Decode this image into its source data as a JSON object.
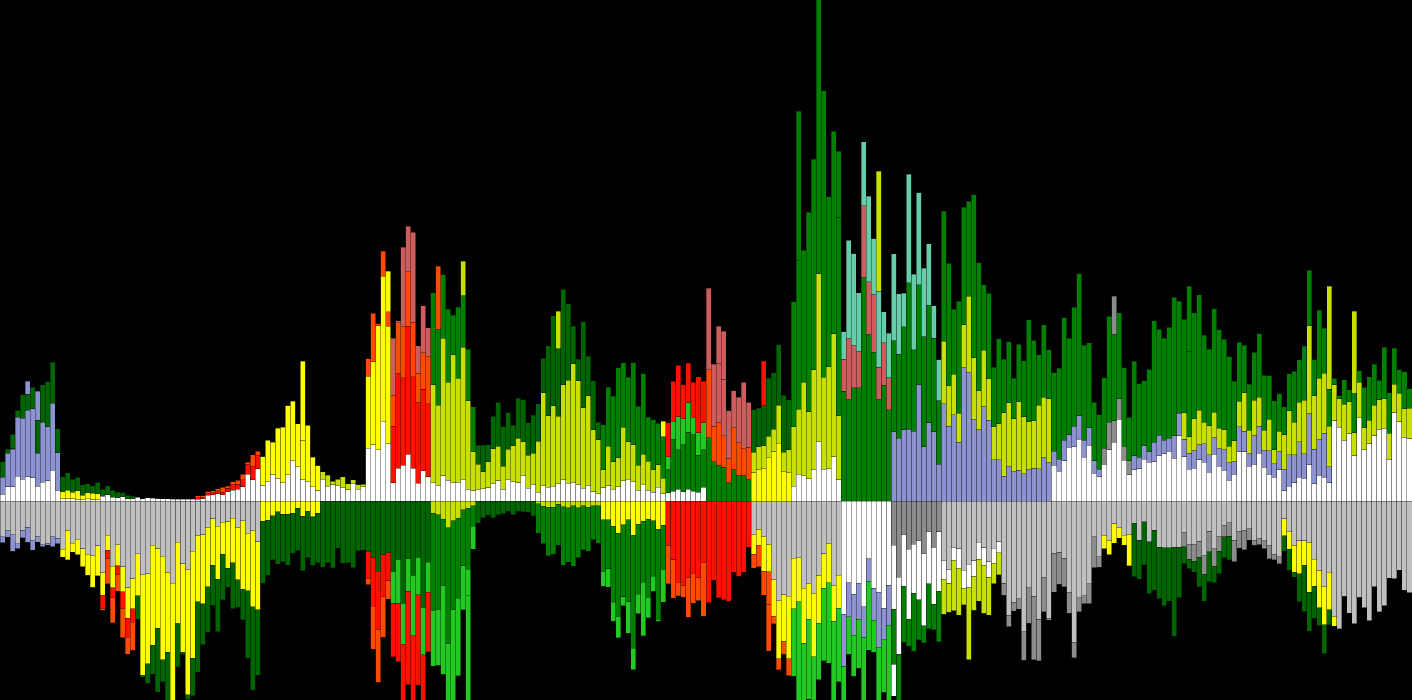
{
  "chart_data": {
    "type": "bar",
    "subtype": "diverging-stacked",
    "title": "",
    "xlabel": "",
    "ylabel": "",
    "legend": "none",
    "grid": false,
    "background": "#000000",
    "ylim": [
      -200,
      420
    ],
    "column_count": 282,
    "palette": {
      "white": "#ffffff",
      "silver": "#c0c0c0",
      "gray": "#8c8c8c",
      "lavender": "#8d93d0",
      "yellow": "#ffff00",
      "lime_yellow": "#c8e000",
      "dark_green": "#006400",
      "green": "#008000",
      "bright_green": "#22c922",
      "red": "#ff1000",
      "orange_red": "#ff4a00",
      "salmon": "#cd5c5c",
      "aquamarine": "#66cdaa",
      "khaki": "#bdb76b"
    },
    "positive_stack_order": [
      "white",
      "gray",
      "lavender",
      "yellow",
      "lime_yellow",
      "dark_green",
      "green",
      "bright_green",
      "red",
      "orange_red",
      "salmon",
      "aquamarine",
      "khaki"
    ],
    "negative_stack_order": [
      "silver",
      "gray",
      "white",
      "lavender",
      "khaki",
      "yellow",
      "lime_yellow",
      "green",
      "dark_green",
      "bright_green",
      "aquamarine",
      "red",
      "orange_red"
    ],
    "segments": [
      {
        "from": 0,
        "to": 8,
        "top": [
          50,
          85,
          95
        ],
        "bottom": [
          -40,
          -45,
          -50
        ],
        "pos": {
          "white": 0.22,
          "dark_green": 0.25,
          "lavender": 0.53
        },
        "neg": {
          "silver": 0.85,
          "lavender": 0.15
        }
      },
      {
        "from": 8,
        "to": 12,
        "top": [
          100,
          130,
          75
        ],
        "bottom": [
          -45,
          -40,
          -45
        ],
        "pos": {
          "white": 0.2,
          "dark_green": 0.3,
          "lavender": 0.5
        },
        "neg": {
          "silver": 0.85,
          "lavender": 0.15
        }
      },
      {
        "from": 12,
        "to": 20,
        "top": [
          25,
          20,
          15
        ],
        "bottom": [
          -50,
          -55,
          -90
        ],
        "pos": {
          "white": 0.1,
          "yellow": 0.35,
          "dark_green": 0.55
        },
        "neg": {
          "silver": 0.7,
          "yellow": 0.3
        }
      },
      {
        "from": 20,
        "to": 27,
        "top": [
          15,
          10,
          5
        ],
        "bottom": [
          -90,
          -110,
          -140
        ],
        "pos": {
          "white": 0.4,
          "dark_green": 0.6
        },
        "neg": {
          "silver": 0.55,
          "yellow": 0.2,
          "red": 0.1,
          "orange_red": 0.15
        }
      },
      {
        "from": 27,
        "to": 39,
        "top": [
          3,
          2,
          1
        ],
        "bottom": [
          -140,
          -190,
          -175
        ],
        "pos": {
          "white": 1.0
        },
        "neg": {
          "silver": 0.35,
          "yellow": 0.5,
          "dark_green": 0.15
        }
      },
      {
        "from": 39,
        "to": 52,
        "top": [
          4,
          15,
          45
        ],
        "bottom": [
          -160,
          -100,
          -180
        ],
        "pos": {
          "white": 0.6,
          "red": 0.25,
          "orange_red": 0.15
        },
        "neg": {
          "silver": 0.2,
          "yellow": 0.45,
          "dark_green": 0.35
        }
      },
      {
        "from": 52,
        "to": 64,
        "top": [
          50,
          100,
          40
        ],
        "bottom": [
          -80,
          -60,
          -60
        ],
        "pos": {
          "white": 0.35,
          "yellow": 0.65
        },
        "neg": {
          "dark_green": 0.8,
          "yellow": 0.2
        }
      },
      {
        "from": 64,
        "to": 73,
        "top": [
          30,
          20,
          15
        ],
        "bottom": [
          -60,
          -55,
          -60
        ],
        "pos": {
          "white": 0.7,
          "lime_yellow": 0.3
        },
        "neg": {
          "dark_green": 1.0
        }
      },
      {
        "from": 73,
        "to": 78,
        "top": [
          180,
          225,
          200
        ],
        "bottom": [
          -100,
          -170,
          -120
        ],
        "pos": {
          "white": 0.3,
          "yellow": 0.55,
          "orange_red": 0.15
        },
        "neg": {
          "red": 0.3,
          "dark_green": 0.5,
          "orange_red": 0.2
        }
      },
      {
        "from": 78,
        "to": 86,
        "top": [
          210,
          235,
          150
        ],
        "bottom": [
          -150,
          -200,
          -180
        ],
        "pos": {
          "white": 0.15,
          "red": 0.45,
          "orange_red": 0.25,
          "salmon": 0.15
        },
        "neg": {
          "red": 0.35,
          "dark_green": 0.4,
          "bright_green": 0.25
        }
      },
      {
        "from": 86,
        "to": 95,
        "top": [
          170,
          240,
          120
        ],
        "bottom": [
          -175,
          -200,
          -60
        ],
        "pos": {
          "white": 0.1,
          "green": 0.35,
          "lime_yellow": 0.55
        },
        "neg": {
          "green": 0.5,
          "bright_green": 0.4,
          "lime_yellow": 0.1
        }
      },
      {
        "from": 95,
        "to": 107,
        "top": [
          55,
          95,
          80
        ],
        "bottom": [
          -20,
          -10,
          -15
        ],
        "pos": {
          "white": 0.2,
          "dark_green": 0.4,
          "lime_yellow": 0.4
        },
        "neg": {
          "dark_green": 1.0
        }
      },
      {
        "from": 107,
        "to": 120,
        "top": [
          110,
          190,
          100
        ],
        "bottom": [
          -40,
          -60,
          -40
        ],
        "pos": {
          "white": 0.1,
          "dark_green": 0.3,
          "lime_yellow": 0.6
        },
        "neg": {
          "green": 0.9,
          "lime_yellow": 0.1
        }
      },
      {
        "from": 120,
        "to": 133,
        "top": [
          90,
          125,
          70
        ],
        "bottom": [
          -80,
          -150,
          -90
        ],
        "pos": {
          "white": 0.15,
          "green": 0.55,
          "lime_yellow": 0.3
        },
        "neg": {
          "green": 0.6,
          "yellow": 0.2,
          "bright_green": 0.2
        }
      },
      {
        "from": 133,
        "to": 141,
        "top": [
          100,
          150,
          120
        ],
        "bottom": [
          -80,
          -110,
          -100
        ],
        "pos": {
          "white": 0.1,
          "green": 0.4,
          "red": 0.3,
          "bright_green": 0.2
        },
        "neg": {
          "red": 0.7,
          "orange_red": 0.3
        }
      },
      {
        "from": 141,
        "to": 150,
        "top": [
          175,
          120,
          90
        ],
        "bottom": [
          -100,
          -90,
          -50
        ],
        "pos": {
          "salmon": 0.45,
          "orange_red": 0.3,
          "green": 0.25
        },
        "neg": {
          "red": 1.0
        }
      },
      {
        "from": 150,
        "to": 158,
        "top": [
          100,
          140,
          130
        ],
        "bottom": [
          -60,
          -130,
          -180
        ],
        "pos": {
          "dark_green": 0.5,
          "lime_yellow": 0.2,
          "yellow": 0.3
        },
        "neg": {
          "silver": 0.5,
          "yellow": 0.3,
          "orange_red": 0.2
        }
      },
      {
        "from": 158,
        "to": 168,
        "top": [
          225,
          415,
          290
        ],
        "bottom": [
          -195,
          -200,
          -190
        ],
        "pos": {
          "white": 0.1,
          "lime_yellow": 0.3,
          "green": 0.6
        },
        "neg": {
          "silver": 0.35,
          "yellow": 0.25,
          "bright_green": 0.4
        }
      },
      {
        "from": 168,
        "to": 178,
        "top": [
          210,
          300,
          200
        ],
        "bottom": [
          -190,
          -175,
          -200
        ],
        "pos": {
          "aquamarine": 0.3,
          "salmon": 0.2,
          "green": 0.5
        },
        "neg": {
          "white": 0.45,
          "lavender": 0.2,
          "bright_green": 0.35
        }
      },
      {
        "from": 178,
        "to": 188,
        "top": [
          200,
          300,
          170
        ],
        "bottom": [
          -190,
          -150,
          -120
        ],
        "pos": {
          "lavender": 0.3,
          "aquamarine": 0.3,
          "green": 0.4
        },
        "neg": {
          "white": 0.4,
          "gray": 0.3,
          "green": 0.3
        }
      },
      {
        "from": 188,
        "to": 200,
        "top": [
          240,
          270,
          130
        ],
        "bottom": [
          -100,
          -140,
          -80
        ],
        "pos": {
          "lavender": 0.35,
          "lime_yellow": 0.2,
          "green": 0.45
        },
        "neg": {
          "silver": 0.55,
          "lime_yellow": 0.3,
          "white": 0.15
        }
      },
      {
        "from": 200,
        "to": 210,
        "top": [
          150,
          145,
          170
        ],
        "bottom": [
          -100,
          -150,
          -120
        ],
        "pos": {
          "lavender": 0.2,
          "lime_yellow": 0.35,
          "green": 0.45
        },
        "neg": {
          "silver": 0.8,
          "gray": 0.2
        }
      },
      {
        "from": 210,
        "to": 220,
        "top": [
          150,
          205,
          90
        ],
        "bottom": [
          -80,
          -140,
          -60
        ],
        "pos": {
          "white": 0.3,
          "lavender": 0.1,
          "green": 0.6
        },
        "neg": {
          "silver": 0.75,
          "gray": 0.25
        }
      },
      {
        "from": 220,
        "to": 226,
        "top": [
          160,
          205,
          90
        ],
        "bottom": [
          -50,
          -40,
          -60
        ],
        "pos": {
          "white": 0.35,
          "gray": 0.15,
          "green": 0.5
        },
        "neg": {
          "silver": 0.6,
          "yellow": 0.4
        }
      },
      {
        "from": 226,
        "to": 236,
        "top": [
          130,
          165,
          210
        ],
        "bottom": [
          -70,
          -90,
          -120
        ],
        "pos": {
          "white": 0.3,
          "lavender": 0.1,
          "green": 0.6
        },
        "neg": {
          "silver": 0.4,
          "dark_green": 0.6
        }
      },
      {
        "from": 236,
        "to": 246,
        "top": [
          175,
          175,
          150
        ],
        "bottom": [
          -75,
          -90,
          -60
        ],
        "pos": {
          "lavender": 0.1,
          "white": 0.2,
          "lime_yellow": 0.15,
          "green": 0.55
        },
        "neg": {
          "silver": 0.5,
          "gray": 0.2,
          "dark_green": 0.3
        }
      },
      {
        "from": 246,
        "to": 256,
        "top": [
          130,
          140,
          100
        ],
        "bottom": [
          -60,
          -35,
          -60
        ],
        "pos": {
          "lavender": 0.15,
          "lime_yellow": 0.2,
          "white": 0.25,
          "green": 0.4
        },
        "neg": {
          "silver": 0.7,
          "gray": 0.3
        }
      },
      {
        "from": 256,
        "to": 266,
        "top": [
          100,
          210,
          140
        ],
        "bottom": [
          -60,
          -120,
          -150
        ],
        "pos": {
          "lavender": 0.2,
          "white": 0.15,
          "green": 0.35,
          "lime_yellow": 0.3
        },
        "neg": {
          "silver": 0.45,
          "yellow": 0.3,
          "dark_green": 0.25
        }
      },
      {
        "from": 266,
        "to": 282,
        "top": [
          120,
          135,
          130
        ],
        "bottom": [
          -110,
          -100,
          -80
        ],
        "pos": {
          "white": 0.55,
          "lime_yellow": 0.25,
          "green": 0.2
        },
        "neg": {
          "silver": 1.0
        }
      }
    ],
    "spikes": [
      {
        "col": 5,
        "pos": {
          "lavender": 120
        }
      },
      {
        "col": 7,
        "pos": {
          "lavender": 110
        }
      },
      {
        "col": 53,
        "pos": {
          "red": 45,
          "yellow": 10
        }
      },
      {
        "col": 60,
        "pos": {
          "yellow": 140
        }
      },
      {
        "col": 61,
        "pos": {
          "yellow": 60
        }
      },
      {
        "col": 74,
        "pos": {
          "yellow": 180
        }
      },
      {
        "col": 77,
        "pos": {
          "yellow": 230
        }
      },
      {
        "col": 81,
        "pos": {
          "orange_red": 205
        }
      },
      {
        "col": 87,
        "pos": {
          "orange_red": 235
        }
      },
      {
        "col": 92,
        "pos": {
          "lime_yellow": 240
        }
      },
      {
        "col": 93,
        "neg": {
          "bright_green": 200
        }
      },
      {
        "col": 111,
        "pos": {
          "lime_yellow": 190
        }
      },
      {
        "col": 125,
        "pos": {
          "green": 120
        }
      },
      {
        "col": 132,
        "pos": {
          "yellow": 80
        }
      },
      {
        "col": 143,
        "pos": {
          "salmon": 175
        }
      },
      {
        "col": 144,
        "pos": {
          "salmon": 170
        }
      },
      {
        "col": 152,
        "pos": {
          "red": 140
        }
      },
      {
        "col": 153,
        "neg": {
          "orange_red": 150
        }
      },
      {
        "col": 159,
        "pos": {
          "green": 390
        }
      },
      {
        "col": 163,
        "pos": {
          "green": 425
        }
      },
      {
        "col": 167,
        "pos": {
          "green": 350
        }
      },
      {
        "col": 175,
        "pos": {
          "lime_yellow": 330
        }
      },
      {
        "col": 178,
        "neg": {
          "white": 195
        }
      },
      {
        "col": 194,
        "pos": {
          "lime_yellow": 270
        }
      },
      {
        "col": 222,
        "pos": {
          "gray": 205
        }
      },
      {
        "col": 237,
        "pos": {
          "green": 215
        }
      },
      {
        "col": 265,
        "pos": {
          "lime_yellow": 215
        }
      },
      {
        "col": 266,
        "neg": {
          "yellow": 125
        }
      },
      {
        "col": 270,
        "pos": {
          "lime_yellow": 190
        }
      }
    ]
  }
}
